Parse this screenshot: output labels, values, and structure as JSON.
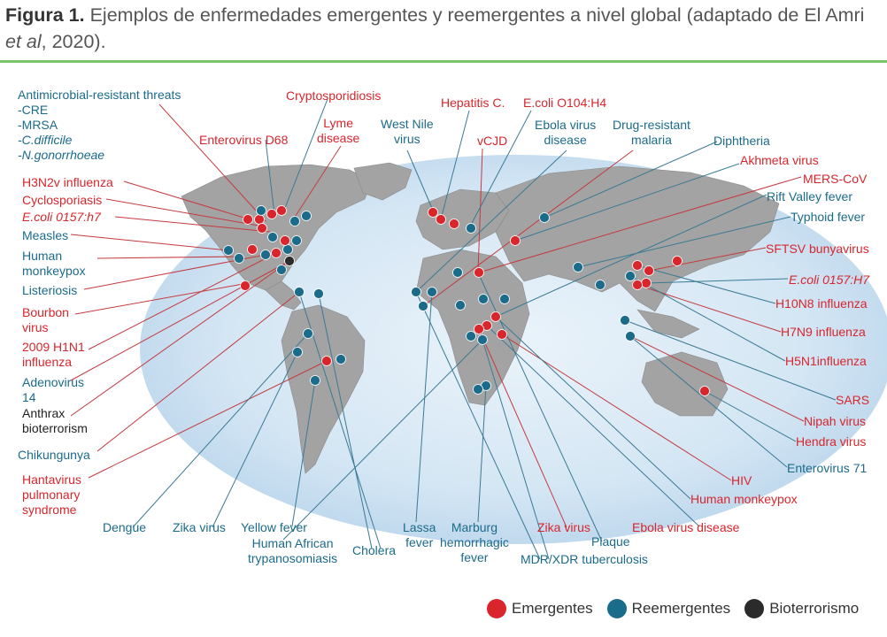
{
  "caption": {
    "figure_label": "Figura 1.",
    "text_1": " Ejemplos de enfermedades emergentes y reemergentes a nivel global (adaptado de El Amri ",
    "text_italic": "et al",
    "text_2": ", 2020)."
  },
  "colors": {
    "emergentes": "#d8262c",
    "reemergentes": "#1b6b8b",
    "bioterrorismo": "#2b2b2b",
    "rule": "#7dc36b",
    "ocean": "#cfe3f2",
    "land": "#a3a3a3"
  },
  "legend": [
    {
      "label": "Emergentes",
      "color": "#d8262c"
    },
    {
      "label": "Reemergentes",
      "color": "#1b6b8b"
    },
    {
      "label": "Bioterrorismo",
      "color": "#2b2b2b"
    }
  ],
  "labels": {
    "antimicrobial": [
      "Antimicrobial-resistant threats",
      "-CRE",
      "-MRSA",
      "-C.difficile",
      "-N.gonorrhoeae"
    ],
    "h3n2v": "H3N2v influenza",
    "cyclosporiasis": "Cyclosporiasis",
    "ecoli_0157_h7": "E.coli 0157:h7",
    "measles": "Measles",
    "human_monkeypox_left": [
      "Human",
      "monkeypox"
    ],
    "listeriosis": "Listeriosis",
    "bourbon": [
      "Bourbon",
      "virus"
    ],
    "h1n1": [
      "2009 H1N1",
      "influenza"
    ],
    "adenovirus": [
      "Adenovirus",
      "14"
    ],
    "anthrax": [
      "Anthrax",
      "bioterrorism"
    ],
    "chikungunya": "Chikungunya",
    "hantavirus": [
      "Hantavirus",
      "pulmonary",
      "syndrome"
    ],
    "enterovirus_d68": "Enterovirus D68",
    "cryptosporidiosis": "Cryptosporidiosis",
    "lyme": [
      "Lyme",
      "disease"
    ],
    "west_nile": [
      "West Nile",
      "virus"
    ],
    "hepatitis_c": "Hepatitis C.",
    "vcjd": "vCJD",
    "ecoli_o104": "E.coli O104:H4",
    "ebola_top": [
      "Ebola virus",
      "disease"
    ],
    "drug_malaria": [
      "Drug-resistant",
      "malaria"
    ],
    "diphtheria": "Diphtheria",
    "akhmeta": "Akhmeta virus",
    "mers": "MERS-CoV",
    "rift_valley": "Rift Valley fever",
    "typhoid": "Typhoid fever",
    "sftsv": "SFTSV bunyavirus",
    "ecoli_0157_H7_right": "E.coli 0157:H7",
    "h10n8": "H10N8 influenza",
    "h7n9": "H7N9 influenza",
    "h5n1": "H5N1influenza",
    "sars": "SARS",
    "nipah": "Nipah virus",
    "hendra": "Hendra virus",
    "enterovirus71": "Enterovirus 71",
    "hiv": "HIV",
    "human_monkeypox_bottom": "Human monkeypox",
    "ebola_bottom": "Ebola virus disease",
    "zika_red": "Zika virus",
    "plaque": "Plaque",
    "mdr_xdr": "MDR/XDR tuberculosis",
    "marburg": [
      "Marburg",
      "hemorrhagic",
      "fever"
    ],
    "lassa": [
      "Lassa",
      "fever"
    ],
    "cholera": "Cholera",
    "yellow_fever": "Yellow fever",
    "human_african": [
      "Human African",
      "trypanosomiasis"
    ],
    "zika_blue": "Zika virus",
    "dengue": "Dengue"
  }
}
